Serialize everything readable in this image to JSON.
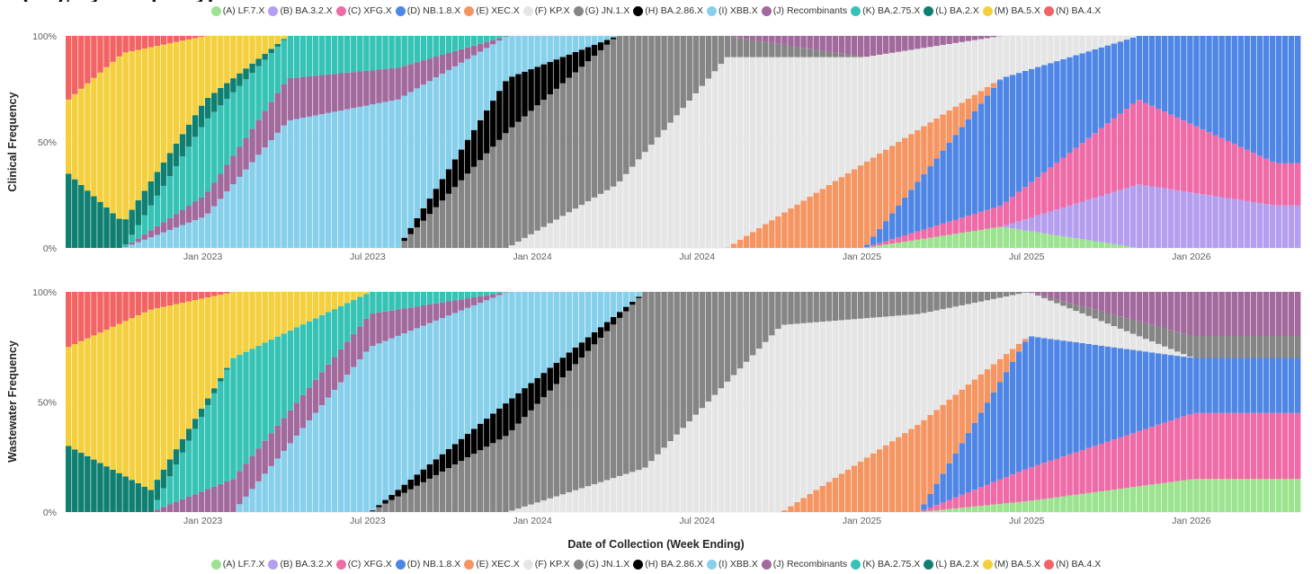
{
  "legend_top": [
    {
      "label": "(A) LF.7.X",
      "color": "#9be38f"
    },
    {
      "label": "(B) BA.3.2.X",
      "color": "#b39ef0"
    },
    {
      "label": "(C) XFG.X",
      "color": "#ee6ba8"
    },
    {
      "label": "(D) NB.1.8.X",
      "color": "#4f86e6"
    },
    {
      "label": "(E) XEC.X",
      "color": "#f59562"
    },
    {
      "label": "(F) KP.X",
      "color": "#e5e5e5"
    },
    {
      "label": "(G) JN.1.X",
      "color": "#858585"
    },
    {
      "label": "(H) BA.2.86.X",
      "color": "#000000"
    },
    {
      "label": "(I) XBB.X",
      "color": "#87d0ec"
    },
    {
      "label": "(J) Recombinants",
      "color": "#a2699c"
    },
    {
      "label": "(K) BA.2.75.X",
      "color": "#36c3b5"
    },
    {
      "label": "(L) BA.2.X",
      "color": "#0e7f70"
    },
    {
      "label": "(M) BA.5.X",
      "color": "#f4d03f"
    },
    {
      "label": "(N) BA.4.X",
      "color": "#f26464"
    }
  ],
  "legend_bottom": [
    {
      "label": "(A) LF.7.X",
      "color": "#9be38f"
    },
    {
      "label": "(B) BA.3.2.X",
      "color": "#b39ef0"
    },
    {
      "label": "(C) XFG.X",
      "color": "#ee6ba8"
    },
    {
      "label": "(D) NB.1.8.X",
      "color": "#4f86e6"
    },
    {
      "label": "(E) XEC.X",
      "color": "#f59562"
    },
    {
      "label": "(F) KP.X",
      "color": "#e5e5e5"
    },
    {
      "label": "(G) JN.1.X",
      "color": "#858585"
    },
    {
      "label": "(H) BA.2.86.X",
      "color": "#000000"
    },
    {
      "label": "(I) XBB.X",
      "color": "#87d0ec"
    },
    {
      "label": "(J) Recombinants",
      "color": "#a2699c"
    },
    {
      "label": "(K) BA.2.75.X",
      "color": "#36c3b5"
    },
    {
      "label": "(L) BA.2.X",
      "color": "#0e7f70"
    },
    {
      "label": "(M) BA.5.X",
      "color": "#f4d03f"
    },
    {
      "label": "(N) BA.4.X",
      "color": "#f26464"
    }
  ],
  "xlabel": "Date of Collection (Week Ending)",
  "chart_data": [
    {
      "type": "bar",
      "stacked": true,
      "percent": true,
      "ylabel": "Clinical Frequency",
      "yticks": [
        "0%",
        "50%",
        "100%"
      ],
      "xticks": [
        "Jan 2023",
        "Jul 2023",
        "Jan 2024",
        "Jul 2024",
        "Jan 2025",
        "Jul 2025",
        "Jan 2026"
      ],
      "x_start": "2022-08",
      "x_end": "2026-05",
      "approx_keyframes": [
        {
          "date": "2022-08",
          "BA.2.X": 0.35,
          "BA.5.X": 0.35,
          "BA.4.X": 0.3
        },
        {
          "date": "2022-10",
          "BA.2.X": 0.12,
          "BA.5.X": 0.8,
          "BA.4.X": 0.08
        },
        {
          "date": "2023-01",
          "XBB.X": 0.15,
          "Recombinants": 0.1,
          "BA.2.75.X": 0.35,
          "BA.2.X": 0.1,
          "BA.5.X": 0.3
        },
        {
          "date": "2023-04",
          "XBB.X": 0.6,
          "Recombinants": 0.2,
          "BA.2.75.X": 0.2
        },
        {
          "date": "2023-08",
          "XBB.X": 0.7,
          "Recombinants": 0.15,
          "BA.2.75.X": 0.15
        },
        {
          "date": "2023-12",
          "BA.2.86.X": 0.25,
          "JN.1.X": 0.55,
          "XBB.X": 0.2
        },
        {
          "date": "2024-04",
          "KP.X": 0.3,
          "JN.1.X": 0.7
        },
        {
          "date": "2024-08",
          "KP.X": 0.9,
          "JN.1.X": 0.1
        },
        {
          "date": "2025-01",
          "XEC.X": 0.4,
          "KP.X": 0.5,
          "Recombinants": 0.1
        },
        {
          "date": "2025-06",
          "NB.1.8.X": 0.6,
          "XFG.X": 0.1,
          "LF.7.X": 0.1,
          "KP.X": 0.2
        },
        {
          "date": "2025-11",
          "XFG.X": 0.4,
          "BA.3.2.X": 0.3,
          "NB.1.8.X": 0.3
        },
        {
          "date": "2026-04",
          "NB.1.8.X": 0.6,
          "XFG.X": 0.2,
          "BA.3.2.X": 0.2
        }
      ]
    },
    {
      "type": "bar",
      "stacked": true,
      "percent": true,
      "ylabel": "Wastewater Frequency",
      "yticks": [
        "0%",
        "50%",
        "100%"
      ],
      "xticks": [
        "Jan 2023",
        "Jul 2023",
        "Jan 2024",
        "Jul 2024",
        "Jan 2025",
        "Jul 2025",
        "Jan 2026"
      ],
      "x_start": "2022-08",
      "x_end": "2026-05",
      "approx_keyframes": [
        {
          "date": "2022-08",
          "BA.2.X": 0.3,
          "BA.5.X": 0.45,
          "BA.4.X": 0.25
        },
        {
          "date": "2022-11",
          "BA.2.X": 0.1,
          "BA.5.X": 0.82,
          "BA.4.X": 0.08
        },
        {
          "date": "2023-02",
          "Recombinants": 0.15,
          "BA.2.75.X": 0.55,
          "BA.5.X": 0.3
        },
        {
          "date": "2023-07",
          "XBB.X": 0.75,
          "Recombinants": 0.15,
          "BA.2.75.X": 0.1
        },
        {
          "date": "2023-12",
          "BA.2.86.X": 0.15,
          "JN.1.X": 0.35,
          "XBB.X": 0.5
        },
        {
          "date": "2024-05",
          "JN.1.X": 0.8,
          "KP.X": 0.2
        },
        {
          "date": "2024-10",
          "KP.X": 0.85,
          "JN.1.X": 0.15
        },
        {
          "date": "2025-03",
          "XEC.X": 0.4,
          "KP.X": 0.5,
          "JN.1.X": 0.1
        },
        {
          "date": "2025-07",
          "NB.1.8.X": 0.6,
          "XFG.X": 0.15,
          "LF.7.X": 0.05,
          "KP.X": 0.2
        },
        {
          "date": "2026-01",
          "XFG.X": 0.3,
          "NB.1.8.X": 0.25,
          "LF.7.X": 0.15,
          "Recombinants": 0.2,
          "JN.1.X": 0.1
        }
      ]
    }
  ]
}
